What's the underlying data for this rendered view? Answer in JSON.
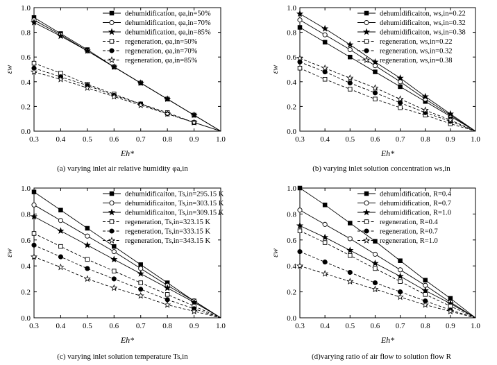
{
  "chart_data": [
    {
      "type": "line",
      "caption": "(a) varying inlet air relative humidity φa,in",
      "xlabel": "Eh*",
      "ylabel": "εw",
      "xlim": [
        0.3,
        1.0
      ],
      "ylim": [
        0.0,
        1.0
      ],
      "xticks": [
        "0.3",
        "0.4",
        "0.5",
        "0.6",
        "0.7",
        "0.8",
        "0.9",
        "1.0"
      ],
      "yticks": [
        "0.0",
        "0.2",
        "0.4",
        "0.6",
        "0.8",
        "1.0"
      ],
      "legend_position": "top-right",
      "series": [
        {
          "name": "dehumidification, φa,in=50%",
          "marker": "square-filled",
          "dash": "solid",
          "x": [
            0.3,
            0.4,
            0.5,
            0.6,
            0.7,
            0.8,
            0.9,
            1.0
          ],
          "y": [
            0.92,
            0.79,
            0.66,
            0.52,
            0.39,
            0.26,
            0.13,
            0.0
          ]
        },
        {
          "name": "dehumidification, φa,in=70%",
          "marker": "circle-open",
          "dash": "solid",
          "x": [
            0.3,
            0.4,
            0.5,
            0.6,
            0.7,
            0.8,
            0.9,
            1.0
          ],
          "y": [
            0.9,
            0.78,
            0.65,
            0.52,
            0.39,
            0.26,
            0.13,
            0.0
          ]
        },
        {
          "name": "dehumidification, φa,in=85%",
          "marker": "star-filled",
          "dash": "solid",
          "x": [
            0.3,
            0.4,
            0.5,
            0.6,
            0.7,
            0.8,
            0.9,
            1.0
          ],
          "y": [
            0.88,
            0.77,
            0.65,
            0.52,
            0.39,
            0.26,
            0.13,
            0.0
          ]
        },
        {
          "name": "regeneration, φa,in=50%",
          "marker": "square-open",
          "dash": "dash",
          "x": [
            0.3,
            0.4,
            0.5,
            0.6,
            0.7,
            0.8,
            0.9,
            1.0
          ],
          "y": [
            0.55,
            0.47,
            0.38,
            0.3,
            0.22,
            0.15,
            0.07,
            0.0
          ]
        },
        {
          "name": "regeneration, φa,in=70%",
          "marker": "circle-filled",
          "dash": "dash",
          "x": [
            0.3,
            0.4,
            0.5,
            0.6,
            0.7,
            0.8,
            0.9,
            1.0
          ],
          "y": [
            0.51,
            0.44,
            0.37,
            0.29,
            0.22,
            0.14,
            0.07,
            0.0
          ]
        },
        {
          "name": "regeneration, φa,in=85%",
          "marker": "star-open",
          "dash": "dash",
          "x": [
            0.3,
            0.4,
            0.5,
            0.6,
            0.7,
            0.8,
            0.9,
            1.0
          ],
          "y": [
            0.48,
            0.42,
            0.35,
            0.28,
            0.21,
            0.14,
            0.07,
            0.0
          ]
        }
      ]
    },
    {
      "type": "line",
      "caption": "(b) varying inlet solution concentration ws,in",
      "xlabel": "Eh*",
      "ylabel": "εw",
      "xlim": [
        0.3,
        1.0
      ],
      "ylim": [
        0.0,
        1.0
      ],
      "xticks": [
        "0.3",
        "0.4",
        "0.5",
        "0.6",
        "0.7",
        "0.8",
        "0.9",
        "1.0"
      ],
      "yticks": [
        "0.0",
        "0.2",
        "0.4",
        "0.6",
        "0.8",
        "1.0"
      ],
      "legend_position": "top-right",
      "series": [
        {
          "name": "dehumidificaiton, ws,in=0.22",
          "marker": "square-filled",
          "dash": "solid",
          "x": [
            0.3,
            0.4,
            0.5,
            0.6,
            0.7,
            0.8,
            0.9,
            1.0
          ],
          "y": [
            0.84,
            0.72,
            0.6,
            0.48,
            0.36,
            0.24,
            0.12,
            0.0
          ]
        },
        {
          "name": "dehumidificaiton, ws,in=0.32",
          "marker": "circle-open",
          "dash": "solid",
          "x": [
            0.3,
            0.4,
            0.5,
            0.6,
            0.7,
            0.8,
            0.9,
            1.0
          ],
          "y": [
            0.9,
            0.78,
            0.66,
            0.53,
            0.4,
            0.26,
            0.13,
            0.0
          ]
        },
        {
          "name": "dehumidificaiton, ws,in=0.38",
          "marker": "star-filled",
          "dash": "solid",
          "x": [
            0.3,
            0.4,
            0.5,
            0.6,
            0.7,
            0.8,
            0.9,
            1.0
          ],
          "y": [
            0.95,
            0.83,
            0.7,
            0.56,
            0.43,
            0.28,
            0.14,
            0.0
          ]
        },
        {
          "name": "regeneration, ws,in=0.22",
          "marker": "square-open",
          "dash": "dash",
          "x": [
            0.3,
            0.4,
            0.5,
            0.6,
            0.7,
            0.8,
            0.9,
            1.0
          ],
          "y": [
            0.51,
            0.42,
            0.34,
            0.26,
            0.19,
            0.13,
            0.06,
            0.0
          ]
        },
        {
          "name": "regeneration, ws,in=0.32",
          "marker": "circle-filled",
          "dash": "dash",
          "x": [
            0.3,
            0.4,
            0.5,
            0.6,
            0.7,
            0.8,
            0.9,
            1.0
          ],
          "y": [
            0.56,
            0.48,
            0.39,
            0.31,
            0.23,
            0.15,
            0.08,
            0.0
          ]
        },
        {
          "name": "regeneration, ws,in=0.38",
          "marker": "star-open",
          "dash": "dash",
          "x": [
            0.3,
            0.4,
            0.5,
            0.6,
            0.7,
            0.8,
            0.9,
            1.0
          ],
          "y": [
            0.59,
            0.51,
            0.43,
            0.35,
            0.26,
            0.17,
            0.09,
            0.0
          ]
        }
      ]
    },
    {
      "type": "line",
      "caption": "(c) varying inlet solution temperature Ts,in",
      "xlabel": "Eh*",
      "ylabel": "εw",
      "xlim": [
        0.3,
        1.0
      ],
      "ylim": [
        0.0,
        1.0
      ],
      "xticks": [
        "0.3",
        "0.4",
        "0.5",
        "0.6",
        "0.7",
        "0.8",
        "0.9",
        "1.0"
      ],
      "yticks": [
        "0.0",
        "0.2",
        "0.4",
        "0.6",
        "0.8",
        "1.0"
      ],
      "legend_position": "top-right",
      "series": [
        {
          "name": "dehumidificaiton, Ts,in=295.15 K",
          "marker": "square-filled",
          "dash": "solid",
          "x": [
            0.3,
            0.4,
            0.5,
            0.6,
            0.7,
            0.8,
            0.9,
            1.0
          ],
          "y": [
            0.97,
            0.83,
            0.69,
            0.55,
            0.41,
            0.27,
            0.13,
            0.0
          ]
        },
        {
          "name": "dehumidificaiton, Ts,in=303.15 K",
          "marker": "circle-open",
          "dash": "solid",
          "x": [
            0.3,
            0.4,
            0.5,
            0.6,
            0.7,
            0.8,
            0.9,
            1.0
          ],
          "y": [
            0.87,
            0.75,
            0.63,
            0.51,
            0.38,
            0.25,
            0.13,
            0.0
          ]
        },
        {
          "name": "dehumidificaiton, Ts,in=309.15 K",
          "marker": "star-filled",
          "dash": "solid",
          "x": [
            0.3,
            0.4,
            0.5,
            0.6,
            0.7,
            0.8,
            0.9,
            1.0
          ],
          "y": [
            0.78,
            0.67,
            0.56,
            0.45,
            0.34,
            0.23,
            0.12,
            0.0
          ]
        },
        {
          "name": "regeneration, Ts,in=323.15 K",
          "marker": "square-open",
          "dash": "dash",
          "x": [
            0.3,
            0.4,
            0.5,
            0.6,
            0.7,
            0.8,
            0.9,
            1.0
          ],
          "y": [
            0.65,
            0.55,
            0.45,
            0.36,
            0.27,
            0.18,
            0.09,
            0.0
          ]
        },
        {
          "name": "regeneration, Ts,in=333.15 K",
          "marker": "circle-filled",
          "dash": "dash",
          "x": [
            0.3,
            0.4,
            0.5,
            0.6,
            0.7,
            0.8,
            0.9,
            1.0
          ],
          "y": [
            0.56,
            0.47,
            0.38,
            0.3,
            0.22,
            0.14,
            0.07,
            0.0
          ]
        },
        {
          "name": "regeneration, Ts,in=343.15 K",
          "marker": "star-open",
          "dash": "dash",
          "x": [
            0.3,
            0.4,
            0.5,
            0.6,
            0.7,
            0.8,
            0.9,
            1.0
          ],
          "y": [
            0.47,
            0.39,
            0.3,
            0.23,
            0.17,
            0.1,
            0.05,
            0.0
          ]
        }
      ]
    },
    {
      "type": "line",
      "caption": "(d)varying ratio of air flow to solution flow R",
      "xlabel": "Eh*",
      "ylabel": "εw",
      "xlim": [
        0.3,
        1.0
      ],
      "ylim": [
        0.0,
        1.0
      ],
      "xticks": [
        "0.3",
        "0.4",
        "0.5",
        "0.6",
        "0.7",
        "0.8",
        "0.9",
        "1.0"
      ],
      "yticks": [
        "0.0",
        "0.2",
        "0.4",
        "0.6",
        "0.8",
        "1.0"
      ],
      "legend_position": "top-right",
      "series": [
        {
          "name": "dehumidification, R=0.4",
          "marker": "square-filled",
          "dash": "solid",
          "x": [
            0.3,
            0.4,
            0.5,
            0.6,
            0.7,
            0.8,
            0.9,
            1.0
          ],
          "y": [
            1.0,
            0.87,
            0.73,
            0.59,
            0.44,
            0.29,
            0.15,
            0.0
          ]
        },
        {
          "name": "dehumidification, R=0.7",
          "marker": "circle-open",
          "dash": "solid",
          "x": [
            0.3,
            0.4,
            0.5,
            0.6,
            0.7,
            0.8,
            0.9,
            1.0
          ],
          "y": [
            0.83,
            0.72,
            0.61,
            0.49,
            0.37,
            0.25,
            0.12,
            0.0
          ]
        },
        {
          "name": "dehumidification, R=1.0",
          "marker": "star-filled",
          "dash": "solid",
          "x": [
            0.3,
            0.4,
            0.5,
            0.6,
            0.7,
            0.8,
            0.9,
            1.0
          ],
          "y": [
            0.71,
            0.62,
            0.52,
            0.42,
            0.32,
            0.21,
            0.11,
            0.0
          ]
        },
        {
          "name": "regeneration, R=0.4",
          "marker": "square-open",
          "dash": "dash",
          "x": [
            0.3,
            0.4,
            0.5,
            0.6,
            0.7,
            0.8,
            0.9,
            1.0
          ],
          "y": [
            0.67,
            0.58,
            0.48,
            0.38,
            0.28,
            0.18,
            0.09,
            0.0
          ]
        },
        {
          "name": "regeneration, R=0.7",
          "marker": "circle-filled",
          "dash": "dash",
          "x": [
            0.3,
            0.4,
            0.5,
            0.6,
            0.7,
            0.8,
            0.9,
            1.0
          ],
          "y": [
            0.51,
            0.43,
            0.35,
            0.27,
            0.2,
            0.13,
            0.06,
            0.0
          ]
        },
        {
          "name": "regeneration, R=1.0",
          "marker": "star-open",
          "dash": "dash",
          "x": [
            0.3,
            0.4,
            0.5,
            0.6,
            0.7,
            0.8,
            0.9,
            1.0
          ],
          "y": [
            0.4,
            0.34,
            0.28,
            0.22,
            0.16,
            0.1,
            0.05,
            0.0
          ]
        }
      ]
    }
  ]
}
